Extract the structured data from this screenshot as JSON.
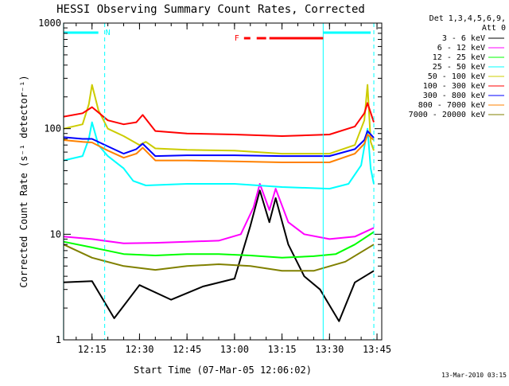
{
  "chart_data": {
    "type": "line",
    "title": "HESSI Observing Summary Count Rates, Corrected",
    "xlabel": "Start Time (07-Mar-05 12:06:02)",
    "ylabel": "Corrected Count Rate (s⁻¹ detector⁻¹)",
    "y_scale": "log",
    "ylim": [
      1,
      1000
    ],
    "xlim": [
      "12:06:02",
      "13:46:30"
    ],
    "y_ticks": [
      {
        "value": 1,
        "label": "1"
      },
      {
        "value": 10,
        "label": "10"
      },
      {
        "value": 100,
        "label": "100"
      },
      {
        "value": 1000,
        "label": "1000"
      }
    ],
    "x_ticks": [
      {
        "value": "12:15",
        "label": "12:15"
      },
      {
        "value": "12:30",
        "label": "12:30"
      },
      {
        "value": "12:45",
        "label": "12:45"
      },
      {
        "value": "13:00",
        "label": "13:00"
      },
      {
        "value": "13:15",
        "label": "13:15"
      },
      {
        "value": "13:30",
        "label": "13:30"
      },
      {
        "value": "13:45",
        "label": "13:45"
      }
    ],
    "legend_header": [
      "Det 1,3,4,5,6,9,",
      "Att 0"
    ],
    "legend_position": "right",
    "series": [
      {
        "name": "3 - 6 keV",
        "color": "#000000",
        "x": [
          "12:06",
          "12:15",
          "12:22",
          "12:30",
          "12:40",
          "12:50",
          "13:00",
          "13:05",
          "13:08",
          "13:11",
          "13:13",
          "13:17",
          "13:22",
          "13:27",
          "13:33",
          "13:38",
          "13:44"
        ],
        "y": [
          3.5,
          3.6,
          1.6,
          3.3,
          2.4,
          3.2,
          3.8,
          12,
          26,
          13,
          22,
          8,
          4,
          3,
          1.5,
          3.5,
          4.5
        ]
      },
      {
        "name": "6 - 12 keV",
        "color": "#ff00ff",
        "x": [
          "12:06",
          "12:15",
          "12:25",
          "12:35",
          "12:45",
          "12:55",
          "13:02",
          "13:06",
          "13:08",
          "13:11",
          "13:13",
          "13:17",
          "13:22",
          "13:30",
          "13:38",
          "13:44"
        ],
        "y": [
          9.5,
          9.0,
          8.2,
          8.3,
          8.5,
          8.7,
          10,
          18,
          30,
          17,
          27,
          13,
          10,
          9,
          9.5,
          11.5
        ]
      },
      {
        "name": "12 - 25 keV",
        "color": "#00ff00",
        "x": [
          "12:06",
          "12:15",
          "12:25",
          "12:35",
          "12:45",
          "12:55",
          "13:05",
          "13:15",
          "13:25",
          "13:32",
          "13:38",
          "13:44"
        ],
        "y": [
          8.5,
          7.5,
          6.5,
          6.3,
          6.5,
          6.5,
          6.3,
          6.0,
          6.2,
          6.5,
          8.0,
          10.5
        ]
      },
      {
        "name": "25 - 50 keV",
        "color": "#00ffff",
        "x": [
          "12:06",
          "12:12",
          "12:14",
          "12:15",
          "12:17",
          "12:20",
          "12:25",
          "12:28",
          "12:32",
          "12:45",
          "13:00",
          "13:15",
          "13:30",
          "13:36",
          "13:40",
          "13:42",
          "13:43",
          "13:44"
        ],
        "y": [
          50,
          55,
          80,
          115,
          70,
          55,
          42,
          32,
          29,
          30,
          30,
          28,
          27,
          30,
          45,
          100,
          42,
          30
        ]
      },
      {
        "name": "50 - 100 keV",
        "color": "#cccc00",
        "x": [
          "12:06",
          "12:12",
          "12:14",
          "12:15",
          "12:17",
          "12:20",
          "12:25",
          "12:30",
          "12:32",
          "12:35",
          "12:45",
          "13:00",
          "13:15",
          "13:30",
          "13:38",
          "13:41",
          "13:42",
          "13:43",
          "13:44"
        ],
        "y": [
          100,
          110,
          170,
          260,
          150,
          100,
          85,
          70,
          75,
          65,
          63,
          62,
          58,
          58,
          70,
          120,
          260,
          75,
          62
        ]
      },
      {
        "name": "100 - 300 keV",
        "color": "#ff0000",
        "x": [
          "12:06",
          "12:12",
          "12:15",
          "12:20",
          "12:25",
          "12:29",
          "12:31",
          "12:35",
          "12:45",
          "13:00",
          "13:15",
          "13:30",
          "13:38",
          "13:41",
          "13:42",
          "13:44"
        ],
        "y": [
          130,
          140,
          160,
          120,
          110,
          115,
          135,
          95,
          90,
          88,
          85,
          88,
          105,
          140,
          175,
          115
        ]
      },
      {
        "name": "300 - 800 keV",
        "color": "#0000ff",
        "x": [
          "12:06",
          "12:12",
          "12:15",
          "12:20",
          "12:25",
          "12:29",
          "12:31",
          "12:35",
          "12:45",
          "13:00",
          "13:15",
          "13:30",
          "13:38",
          "13:41",
          "13:42",
          "13:44"
        ],
        "y": [
          83,
          80,
          80,
          68,
          58,
          64,
          72,
          55,
          56,
          56,
          55,
          55,
          64,
          78,
          95,
          82
        ]
      },
      {
        "name": "800 - 7000 keV",
        "color": "#ff8000",
        "x": [
          "12:06",
          "12:12",
          "12:15",
          "12:20",
          "12:25",
          "12:29",
          "12:31",
          "12:35",
          "12:45",
          "13:00",
          "13:15",
          "13:30",
          "13:38",
          "13:41",
          "13:42",
          "13:44"
        ],
        "y": [
          78,
          75,
          74,
          62,
          53,
          58,
          66,
          50,
          50,
          49,
          48,
          48,
          58,
          72,
          88,
          78
        ]
      },
      {
        "name": "7000 - 20000 keV",
        "color": "#808000",
        "x": [
          "12:06",
          "12:15",
          "12:25",
          "12:35",
          "12:45",
          "12:55",
          "13:05",
          "13:15",
          "13:25",
          "13:35",
          "13:44"
        ],
        "y": [
          8.0,
          6.0,
          5.0,
          4.6,
          5.0,
          5.2,
          5.0,
          4.5,
          4.5,
          5.5,
          8.0
        ]
      }
    ],
    "annotations": {
      "night_bars": [
        [
          "12:06",
          "12:17"
        ],
        [
          "13:28",
          "13:43"
        ]
      ],
      "night_label": "N",
      "night_color": "#00ffff",
      "flare_bars": [
        [
          "13:03",
          "13:05"
        ],
        [
          "13:07",
          "13:10"
        ],
        [
          "13:11",
          "13:28"
        ]
      ],
      "flare_label": "F",
      "flare_color": "#ff0000",
      "vertical_lines": [
        {
          "time": "12:06",
          "style": "solid"
        },
        {
          "time": "12:19",
          "style": "dashed"
        },
        {
          "time": "13:28",
          "style": "solid"
        },
        {
          "time": "13:44",
          "style": "dashed"
        }
      ]
    },
    "grid": false
  },
  "footer_timestamp": "13-Mar-2010 03:15"
}
